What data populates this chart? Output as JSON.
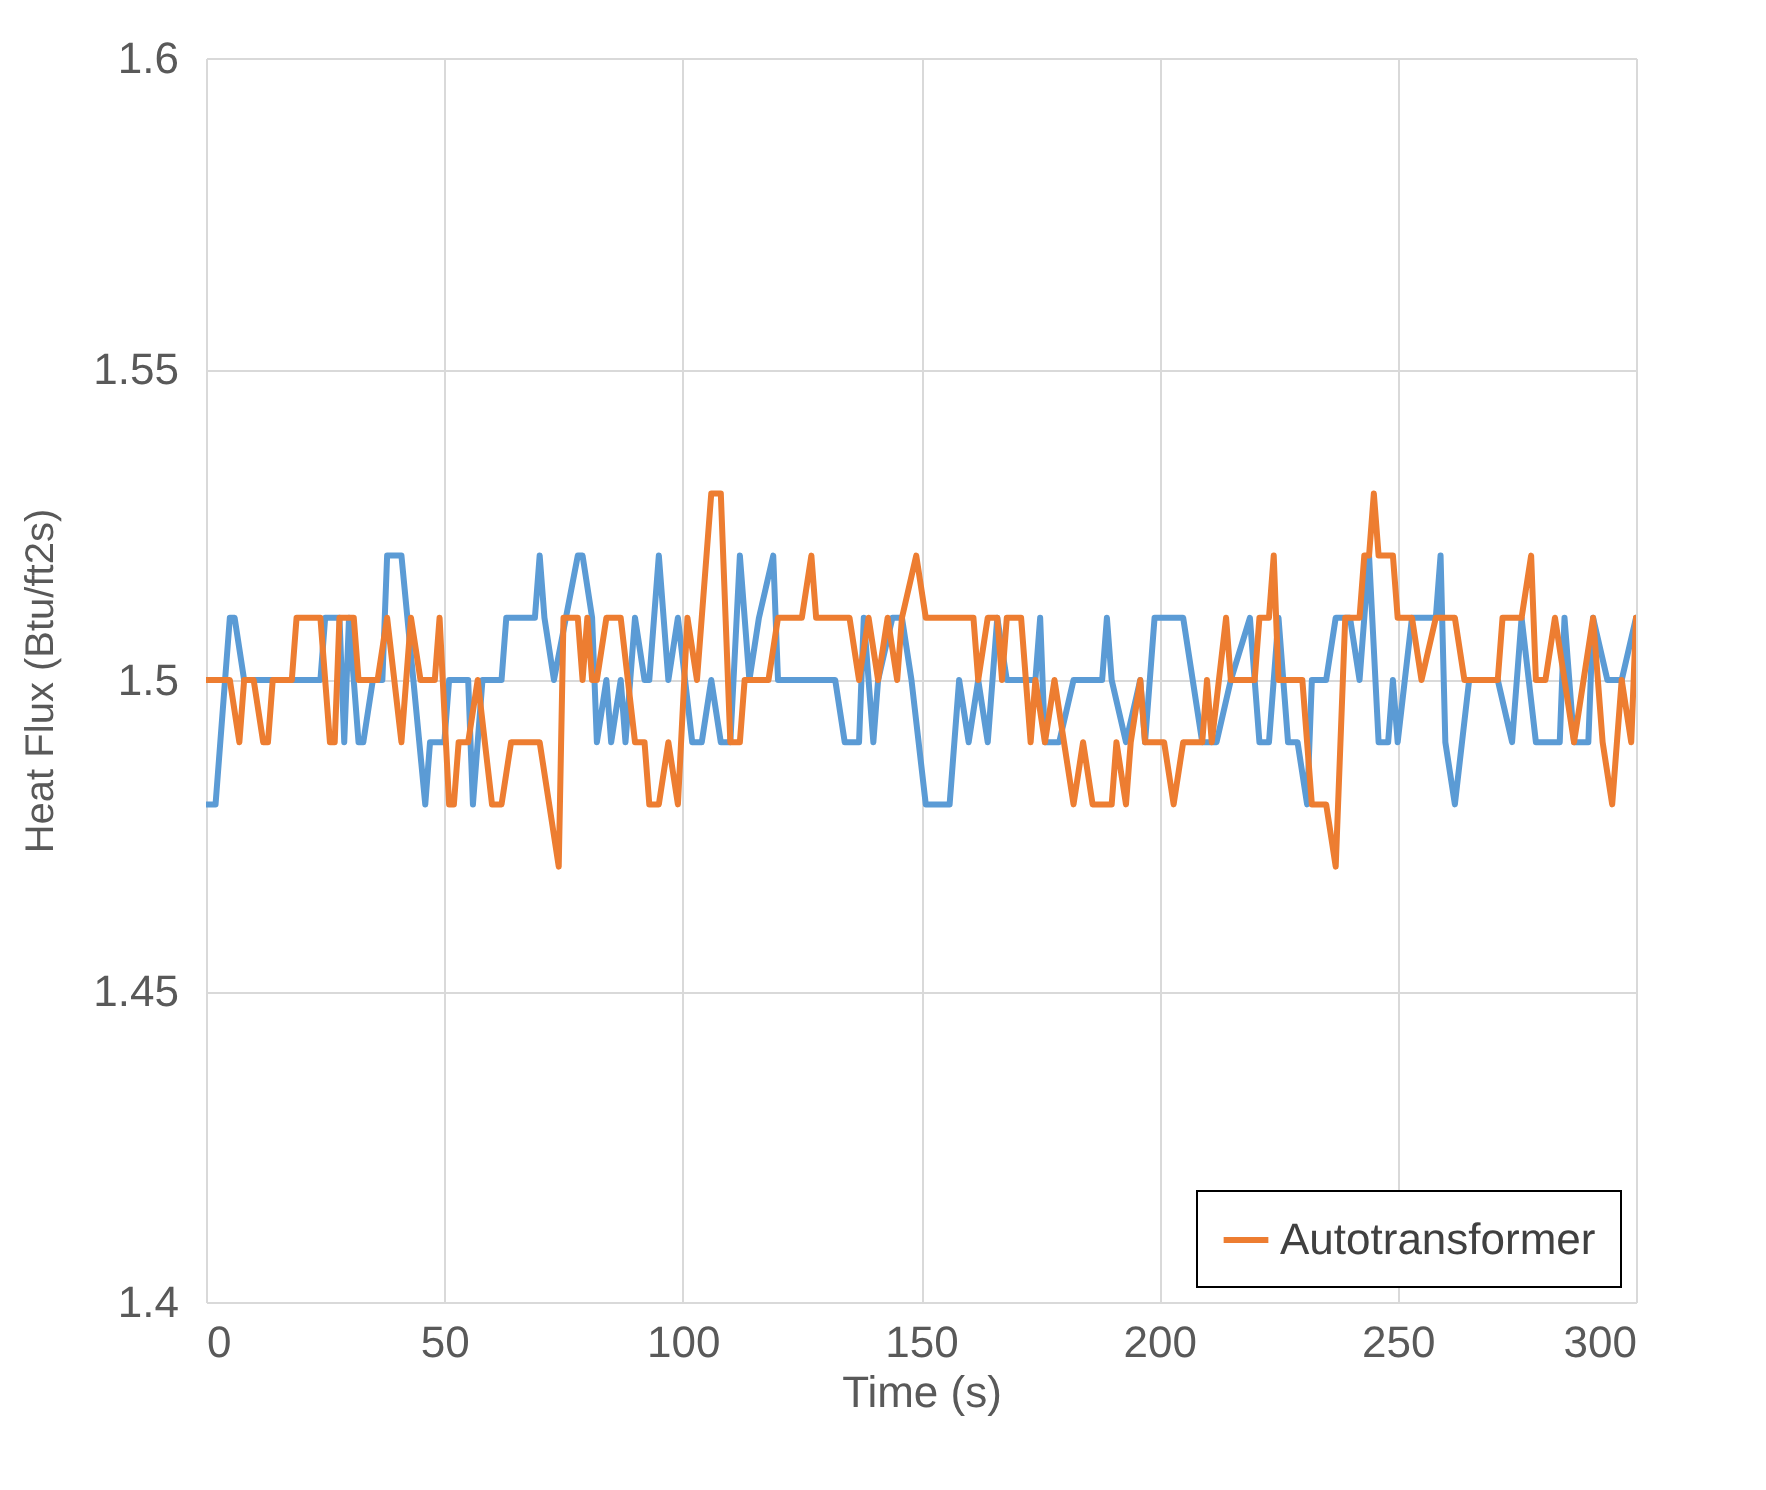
{
  "chart_data": {
    "type": "line",
    "xlabel": "Time (s)",
    "ylabel": "Heat Flux (Btu/ft2s)",
    "xlim": [
      0,
      300
    ],
    "xticks": [
      0,
      50,
      100,
      150,
      200,
      250,
      300
    ],
    "ylim": [
      1.4,
      1.6
    ],
    "yticks": [
      1.4,
      1.45,
      1.5,
      1.55,
      1.6
    ],
    "grid": true,
    "legend": "bottom right",
    "line_style": "solid",
    "marker": "none",
    "series": [
      {
        "color": "#5b9bd5",
        "x": [
          0,
          2,
          5,
          6,
          8,
          24,
          25,
          28,
          29,
          30,
          32,
          33,
          35,
          37,
          38,
          41,
          46,
          47,
          50,
          51,
          55,
          56,
          58,
          62,
          63,
          69,
          70,
          71,
          73,
          78,
          79,
          81,
          82,
          84,
          85,
          87,
          88,
          90,
          92,
          93,
          95,
          97,
          99,
          102,
          104,
          106,
          108,
          110,
          112,
          114,
          116,
          119,
          120,
          132,
          134,
          137,
          138,
          140,
          141,
          144,
          146,
          148,
          151,
          156,
          158,
          160,
          162,
          164,
          166,
          168,
          174,
          175,
          176,
          179,
          182,
          188,
          189,
          190,
          193,
          196,
          197,
          199,
          205,
          207,
          209,
          212,
          215,
          219,
          221,
          223,
          225,
          226,
          227,
          229,
          231,
          232,
          235,
          237,
          240,
          242,
          243,
          244,
          246,
          248,
          249,
          250,
          253,
          258,
          259,
          260,
          262,
          265,
          271,
          274,
          276,
          279,
          284,
          285,
          287,
          290,
          291,
          294,
          297,
          300
        ],
        "values": [
          1.48,
          1.48,
          1.51,
          1.51,
          1.5,
          1.5,
          1.51,
          1.51,
          1.49,
          1.51,
          1.49,
          1.49,
          1.5,
          1.5,
          1.52,
          1.52,
          1.48,
          1.49,
          1.49,
          1.5,
          1.5,
          1.48,
          1.5,
          1.5,
          1.51,
          1.51,
          1.52,
          1.51,
          1.5,
          1.52,
          1.52,
          1.51,
          1.49,
          1.5,
          1.49,
          1.5,
          1.49,
          1.51,
          1.5,
          1.5,
          1.52,
          1.5,
          1.51,
          1.49,
          1.49,
          1.5,
          1.49,
          1.49,
          1.52,
          1.5,
          1.51,
          1.52,
          1.5,
          1.5,
          1.49,
          1.49,
          1.51,
          1.49,
          1.5,
          1.51,
          1.51,
          1.5,
          1.48,
          1.48,
          1.5,
          1.49,
          1.5,
          1.49,
          1.51,
          1.5,
          1.5,
          1.51,
          1.49,
          1.49,
          1.5,
          1.5,
          1.51,
          1.5,
          1.49,
          1.5,
          1.49,
          1.51,
          1.51,
          1.5,
          1.49,
          1.49,
          1.5,
          1.51,
          1.49,
          1.49,
          1.51,
          1.5,
          1.49,
          1.49,
          1.48,
          1.5,
          1.5,
          1.51,
          1.51,
          1.5,
          1.51,
          1.52,
          1.49,
          1.49,
          1.5,
          1.49,
          1.51,
          1.51,
          1.52,
          1.49,
          1.48,
          1.5,
          1.5,
          1.49,
          1.51,
          1.49,
          1.49,
          1.51,
          1.49,
          1.49,
          1.51,
          1.5,
          1.5,
          1.51
        ]
      },
      {
        "name": "Autotransformer",
        "color": "#ed7d31",
        "x": [
          0,
          5,
          7,
          8,
          10,
          12,
          13,
          14,
          18,
          19,
          24,
          26,
          27,
          28,
          31,
          32,
          36,
          38,
          41,
          43,
          45,
          48,
          49,
          51,
          52,
          53,
          55,
          57,
          60,
          62,
          64,
          70,
          72,
          74,
          75,
          78,
          79,
          80,
          81,
          82,
          84,
          87,
          90,
          92,
          93,
          95,
          97,
          99,
          101,
          103,
          106,
          108,
          110,
          112,
          113,
          118,
          120,
          125,
          127,
          128,
          135,
          137,
          139,
          141,
          143,
          145,
          146,
          149,
          151,
          161,
          162,
          164,
          166,
          167,
          168,
          171,
          173,
          174,
          176,
          178,
          180,
          182,
          184,
          186,
          190,
          191,
          193,
          194,
          196,
          197,
          198,
          201,
          203,
          205,
          209,
          210,
          211,
          214,
          215,
          220,
          221,
          223,
          224,
          225,
          230,
          232,
          235,
          237,
          239,
          242,
          243,
          244,
          245,
          246,
          249,
          250,
          253,
          255,
          258,
          262,
          264,
          271,
          272,
          276,
          278,
          279,
          281,
          283,
          285,
          287,
          289,
          291,
          293,
          295,
          297,
          299,
          300
        ],
        "values": [
          1.5,
          1.5,
          1.49,
          1.5,
          1.5,
          1.49,
          1.49,
          1.5,
          1.5,
          1.51,
          1.51,
          1.49,
          1.49,
          1.51,
          1.51,
          1.5,
          1.5,
          1.51,
          1.49,
          1.51,
          1.5,
          1.5,
          1.51,
          1.48,
          1.48,
          1.49,
          1.49,
          1.5,
          1.48,
          1.48,
          1.49,
          1.49,
          1.48,
          1.47,
          1.51,
          1.51,
          1.5,
          1.51,
          1.5,
          1.5,
          1.51,
          1.51,
          1.49,
          1.49,
          1.48,
          1.48,
          1.49,
          1.48,
          1.51,
          1.5,
          1.53,
          1.53,
          1.49,
          1.49,
          1.5,
          1.5,
          1.51,
          1.51,
          1.52,
          1.51,
          1.51,
          1.5,
          1.51,
          1.5,
          1.51,
          1.5,
          1.51,
          1.52,
          1.51,
          1.51,
          1.5,
          1.51,
          1.51,
          1.5,
          1.51,
          1.51,
          1.49,
          1.5,
          1.49,
          1.5,
          1.49,
          1.48,
          1.49,
          1.48,
          1.48,
          1.49,
          1.48,
          1.49,
          1.5,
          1.49,
          1.49,
          1.49,
          1.48,
          1.49,
          1.49,
          1.5,
          1.49,
          1.51,
          1.5,
          1.5,
          1.51,
          1.51,
          1.52,
          1.5,
          1.5,
          1.48,
          1.48,
          1.47,
          1.51,
          1.51,
          1.52,
          1.52,
          1.53,
          1.52,
          1.52,
          1.51,
          1.51,
          1.5,
          1.51,
          1.51,
          1.5,
          1.5,
          1.51,
          1.51,
          1.52,
          1.5,
          1.5,
          1.51,
          1.5,
          1.49,
          1.5,
          1.51,
          1.49,
          1.48,
          1.5,
          1.49,
          1.51
        ]
      }
    ]
  }
}
